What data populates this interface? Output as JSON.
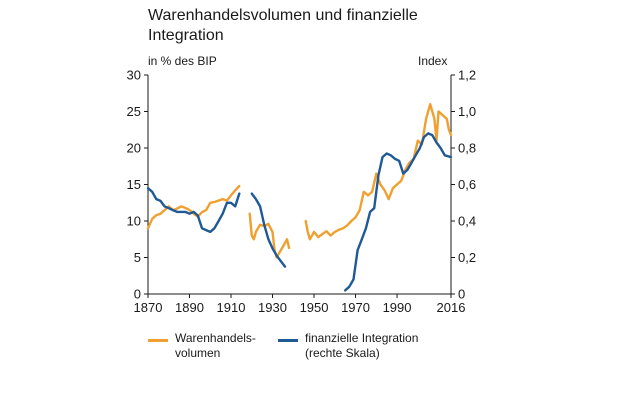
{
  "chart_data": {
    "type": "line",
    "title": "Warenhandelsvolumen und finanzielle Integration",
    "left_axis_label": "in % des BIP",
    "right_axis_label": "Index",
    "ylim_left": [
      0,
      30
    ],
    "ylim_right": [
      0,
      1.2
    ],
    "left_ticks": [
      "0",
      "5",
      "10",
      "15",
      "20",
      "25",
      "30"
    ],
    "right_ticks": [
      "0",
      "0,2",
      "0,4",
      "0,6",
      "0,8",
      "1,0",
      "1,2"
    ],
    "xlim": [
      1870,
      2016
    ],
    "x_ticks": [
      "1870",
      "1890",
      "1910",
      "1930",
      "1950",
      "1970",
      "1990",
      "2016"
    ],
    "colors": {
      "trade": "#f0a030",
      "finance": "#1f5a96"
    },
    "series": [
      {
        "name": "Warenhandelsvolumen",
        "axis": "left",
        "segments": [
          [
            [
              1870,
              9.0
            ],
            [
              1872,
              10.3
            ],
            [
              1874,
              10.8
            ],
            [
              1876,
              11.0
            ],
            [
              1878,
              11.5
            ],
            [
              1880,
              12.0
            ],
            [
              1882,
              11.5
            ],
            [
              1884,
              11.7
            ],
            [
              1886,
              12.0
            ],
            [
              1888,
              11.8
            ],
            [
              1890,
              11.5
            ],
            [
              1892,
              11.0
            ],
            [
              1894,
              10.6
            ],
            [
              1896,
              11.2
            ],
            [
              1898,
              11.5
            ],
            [
              1900,
              12.5
            ],
            [
              1902,
              12.6
            ],
            [
              1904,
              12.8
            ],
            [
              1906,
              13.0
            ],
            [
              1908,
              12.8
            ],
            [
              1910,
              13.5
            ],
            [
              1912,
              14.2
            ],
            [
              1914,
              14.8
            ]
          ],
          [
            [
              1919,
              11.0
            ],
            [
              1920,
              8.0
            ],
            [
              1921,
              7.5
            ],
            [
              1922,
              8.5
            ],
            [
              1924,
              9.5
            ],
            [
              1926,
              9.3
            ],
            [
              1928,
              9.6
            ],
            [
              1930,
              8.5
            ],
            [
              1931,
              6.0
            ],
            [
              1932,
              5.0
            ],
            [
              1933,
              5.5
            ],
            [
              1935,
              6.5
            ],
            [
              1937,
              7.5
            ],
            [
              1938,
              6.3
            ]
          ],
          [
            [
              1946,
              10.0
            ],
            [
              1947,
              8.5
            ],
            [
              1948,
              7.5
            ],
            [
              1950,
              8.5
            ],
            [
              1952,
              7.8
            ],
            [
              1954,
              8.2
            ],
            [
              1956,
              8.6
            ],
            [
              1958,
              8.0
            ],
            [
              1960,
              8.5
            ],
            [
              1962,
              8.8
            ],
            [
              1964,
              9.0
            ],
            [
              1966,
              9.4
            ],
            [
              1968,
              10.0
            ],
            [
              1970,
              10.5
            ],
            [
              1972,
              11.5
            ],
            [
              1974,
              14.0
            ],
            [
              1976,
              13.5
            ],
            [
              1978,
              14.0
            ],
            [
              1980,
              16.5
            ],
            [
              1982,
              15.0
            ],
            [
              1984,
              14.2
            ],
            [
              1986,
              13.0
            ],
            [
              1988,
              14.5
            ],
            [
              1990,
              15.0
            ],
            [
              1992,
              15.5
            ],
            [
              1994,
              17.0
            ],
            [
              1996,
              18.0
            ],
            [
              1998,
              18.5
            ],
            [
              2000,
              21.0
            ],
            [
              2002,
              20.5
            ],
            [
              2004,
              24.0
            ],
            [
              2006,
              26.0
            ],
            [
              2008,
              24.0
            ],
            [
              2009,
              21.0
            ],
            [
              2010,
              25.0
            ],
            [
              2012,
              24.5
            ],
            [
              2014,
              24.0
            ],
            [
              2015,
              22.5
            ],
            [
              2016,
              21.8
            ]
          ]
        ]
      },
      {
        "name": "finanzielle Integration (rechte Skala)",
        "axis": "right",
        "segments": [
          [
            [
              1870,
              0.58
            ],
            [
              1872,
              0.56
            ],
            [
              1874,
              0.52
            ],
            [
              1876,
              0.51
            ],
            [
              1878,
              0.48
            ],
            [
              1880,
              0.47
            ],
            [
              1882,
              0.46
            ],
            [
              1884,
              0.45
            ],
            [
              1886,
              0.45
            ],
            [
              1888,
              0.45
            ],
            [
              1890,
              0.44
            ],
            [
              1892,
              0.45
            ],
            [
              1894,
              0.43
            ],
            [
              1896,
              0.36
            ],
            [
              1898,
              0.35
            ],
            [
              1900,
              0.34
            ],
            [
              1902,
              0.36
            ],
            [
              1904,
              0.4
            ],
            [
              1906,
              0.44
            ],
            [
              1908,
              0.5
            ],
            [
              1910,
              0.5
            ],
            [
              1912,
              0.48
            ],
            [
              1914,
              0.55
            ]
          ],
          [
            [
              1920,
              0.55
            ],
            [
              1922,
              0.52
            ],
            [
              1924,
              0.48
            ],
            [
              1926,
              0.38
            ],
            [
              1928,
              0.3
            ],
            [
              1930,
              0.25
            ],
            [
              1932,
              0.21
            ],
            [
              1934,
              0.18
            ],
            [
              1936,
              0.15
            ]
          ],
          [
            [
              1965,
              0.02
            ],
            [
              1967,
              0.04
            ],
            [
              1969,
              0.08
            ],
            [
              1971,
              0.24
            ],
            [
              1973,
              0.3
            ],
            [
              1975,
              0.36
            ],
            [
              1977,
              0.45
            ],
            [
              1979,
              0.47
            ],
            [
              1981,
              0.65
            ],
            [
              1983,
              0.75
            ],
            [
              1985,
              0.77
            ],
            [
              1987,
              0.76
            ],
            [
              1989,
              0.74
            ],
            [
              1991,
              0.73
            ],
            [
              1993,
              0.66
            ],
            [
              1995,
              0.68
            ],
            [
              1997,
              0.72
            ],
            [
              1999,
              0.76
            ],
            [
              2001,
              0.8
            ],
            [
              2003,
              0.86
            ],
            [
              2005,
              0.88
            ],
            [
              2007,
              0.87
            ],
            [
              2009,
              0.83
            ],
            [
              2011,
              0.8
            ],
            [
              2013,
              0.76
            ],
            [
              2016,
              0.75
            ]
          ]
        ]
      }
    ]
  },
  "legend": [
    {
      "line1": "Warenhandels-",
      "line2": "volumen"
    },
    {
      "line1": "finanzielle Integration",
      "line2": "(rechte Skala)"
    }
  ]
}
